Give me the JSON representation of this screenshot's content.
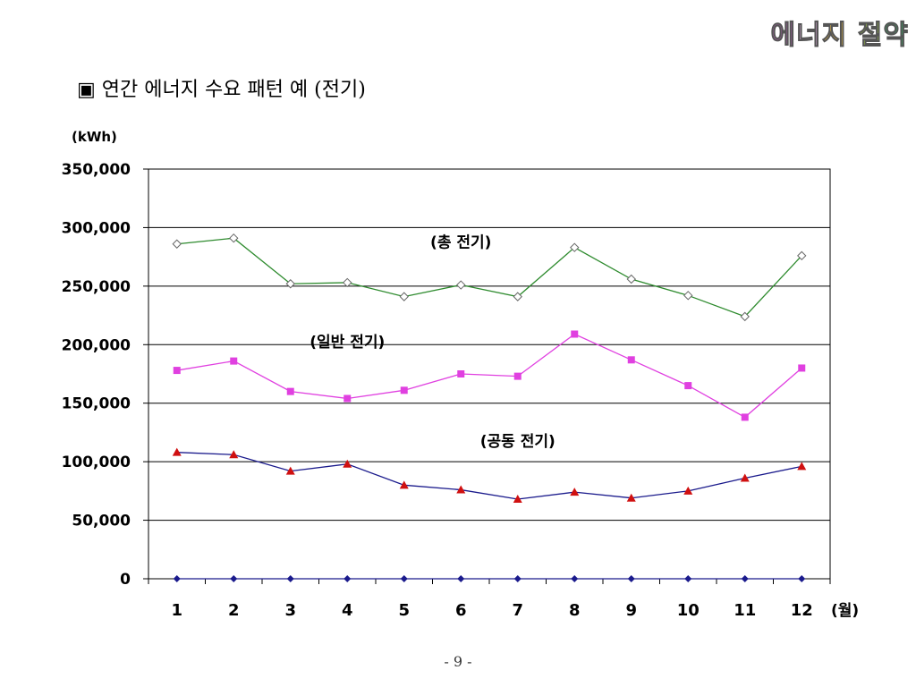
{
  "logo": {
    "chars": [
      {
        "ch": "에",
        "color": "#c060c0"
      },
      {
        "ch": "너",
        "color": "#e0b0e0"
      },
      {
        "ch": "지",
        "color": "#f0c040"
      },
      {
        "ch": " ",
        "color": "#000000"
      },
      {
        "ch": "절",
        "color": "#a0d040"
      },
      {
        "ch": "약",
        "color": "#30b060"
      }
    ]
  },
  "slide_title": "▣ 연간 에너지 수요 패턴 예 (전기)",
  "page_number": "- 9 -",
  "chart_data": {
    "type": "line",
    "title": "",
    "ylabel": "(kWh)",
    "xlabel": "(월)",
    "ylim": [
      0,
      350000
    ],
    "yticks": [
      "0",
      "50,000",
      "100,000",
      "150,000",
      "200,000",
      "250,000",
      "300,000",
      "350,000"
    ],
    "categories": [
      "1",
      "2",
      "3",
      "4",
      "5",
      "6",
      "7",
      "8",
      "9",
      "10",
      "11",
      "12"
    ],
    "grid": true,
    "series": [
      {
        "name": "(총 전기)",
        "color": "#2e8b2e",
        "marker": "diamond-open",
        "values": [
          286000,
          291000,
          252000,
          253000,
          241000,
          251000,
          241000,
          283000,
          256000,
          242000,
          224000,
          276000
        ]
      },
      {
        "name": "(일반 전기)",
        "color": "#e040e0",
        "marker": "square",
        "values": [
          178000,
          186000,
          160000,
          154000,
          161000,
          175000,
          173000,
          209000,
          187000,
          165000,
          138000,
          180000
        ]
      },
      {
        "name": "(공동 전기)",
        "color": "#1a1a8c",
        "marker": "triangle",
        "values": [
          108000,
          106000,
          92000,
          98000,
          80000,
          76000,
          68000,
          74000,
          69000,
          75000,
          86000,
          96000
        ]
      },
      {
        "name": "",
        "color": "#1a1a8c",
        "marker": "diamond",
        "values": [
          0,
          0,
          0,
          0,
          0,
          0,
          0,
          0,
          0,
          0,
          0,
          0
        ]
      }
    ],
    "annotations": [
      {
        "text": "(총 전기)",
        "x": "6",
        "y": 283000
      },
      {
        "text": "(일반 전기)",
        "x": "4",
        "y": 198000
      },
      {
        "text": "(공동 전기)",
        "x": "7",
        "y": 113000
      }
    ]
  }
}
